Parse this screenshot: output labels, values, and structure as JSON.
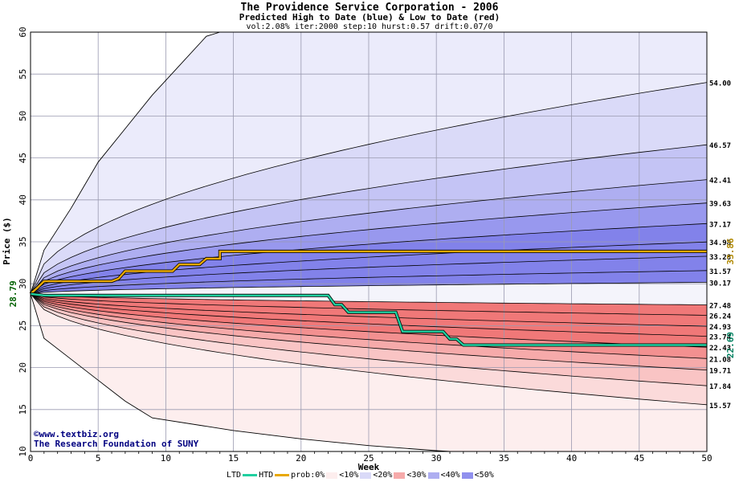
{
  "title": "The Providence Service Corporation - 2006",
  "subtitle": "Predicted High to Date (blue) &  Low to Date (red)",
  "params": "vol:2.08% iter:2000 step:10 hurst:0.57 drift:0.07/0",
  "credits": {
    "line1": "©www.textbiz.org",
    "line2": "The Research Foundation of SUNY"
  },
  "legend": {
    "ltd": "LTD",
    "htd": "HTD",
    "prob": "prob:0%",
    "b10": "<10%",
    "b20": "<20%",
    "b30": "<30%",
    "b40": "<40%",
    "b50": "<50%"
  },
  "colors": {
    "htd": "#e8a800",
    "ltd": "#20d0a0",
    "blue": [
      "#ebebfb",
      "#dadaf8",
      "#c4c4f5",
      "#aeaef1",
      "#9898ee",
      "#8282ea"
    ],
    "red": [
      "#fdeeee",
      "#fbdada",
      "#f9c4c4",
      "#f6aaaa",
      "#f39090",
      "#f07878"
    ]
  },
  "chart_data": {
    "type": "area",
    "title": "The Providence Service Corporation - 2006",
    "xlabel": "Week",
    "ylabel": "Price ($)",
    "xlim": [
      0,
      50
    ],
    "ylim": [
      10,
      60
    ],
    "xticks": [
      "0",
      "5",
      "10",
      "15",
      "20",
      "25",
      "30",
      "35",
      "40",
      "45",
      "50"
    ],
    "yticks": [
      "10",
      "15",
      "20",
      "25",
      "30",
      "35",
      "40",
      "45",
      "50",
      "55",
      "60"
    ],
    "grid": true,
    "start_price": "28.79",
    "last_high": "33.86",
    "last_low": "22.69",
    "high_levels": [
      "54.00",
      "46.57",
      "42.41",
      "39.63",
      "37.17",
      "34.98",
      "33.28",
      "31.57",
      "30.17"
    ],
    "low_levels": [
      "27.48",
      "26.24",
      "24.93",
      "23.74",
      "22.43",
      "21.08",
      "19.71",
      "17.84",
      "15.57"
    ],
    "high_level_values": [
      54.0,
      46.57,
      42.41,
      39.63,
      37.17,
      34.98,
      33.28,
      31.57,
      30.17
    ],
    "low_level_values": [
      27.48,
      26.24,
      24.93,
      23.74,
      22.43,
      21.08,
      19.71,
      17.84,
      15.57
    ],
    "outer_high": [
      [
        0,
        28.79
      ],
      [
        1,
        34
      ],
      [
        3,
        39
      ],
      [
        5,
        44.5
      ],
      [
        7,
        48.5
      ],
      [
        9,
        52.5
      ],
      [
        11,
        56
      ],
      [
        13,
        59.5
      ],
      [
        14,
        60
      ]
    ],
    "outer_low": [
      [
        0,
        28.79
      ],
      [
        1,
        23.5
      ],
      [
        3,
        21
      ],
      [
        5,
        18.5
      ],
      [
        7,
        16
      ],
      [
        9,
        14
      ],
      [
        15,
        12.5
      ],
      [
        20,
        11.5
      ],
      [
        25,
        10.7
      ],
      [
        30,
        10.1
      ],
      [
        31,
        10
      ]
    ],
    "htd_path": [
      [
        0,
        28.79
      ],
      [
        0.5,
        29.5
      ],
      [
        1,
        30.3
      ],
      [
        6,
        30.3
      ],
      [
        6.5,
        30.6
      ],
      [
        7,
        31.5
      ],
      [
        10.5,
        31.5
      ],
      [
        11,
        32.3
      ],
      [
        12.5,
        32.3
      ],
      [
        13,
        33
      ],
      [
        14,
        33
      ],
      [
        14,
        33.86
      ],
      [
        50,
        33.86
      ]
    ],
    "ltd_path": [
      [
        0,
        28.79
      ],
      [
        1,
        28.6
      ],
      [
        22,
        28.6
      ],
      [
        22.5,
        27.5
      ],
      [
        23,
        27.5
      ],
      [
        23.5,
        26.6
      ],
      [
        27,
        26.6
      ],
      [
        27.5,
        24.3
      ],
      [
        29,
        24.3
      ],
      [
        30.5,
        24.3
      ],
      [
        31,
        23.4
      ],
      [
        31.5,
        23.4
      ],
      [
        32,
        22.69
      ],
      [
        50,
        22.69
      ]
    ]
  }
}
